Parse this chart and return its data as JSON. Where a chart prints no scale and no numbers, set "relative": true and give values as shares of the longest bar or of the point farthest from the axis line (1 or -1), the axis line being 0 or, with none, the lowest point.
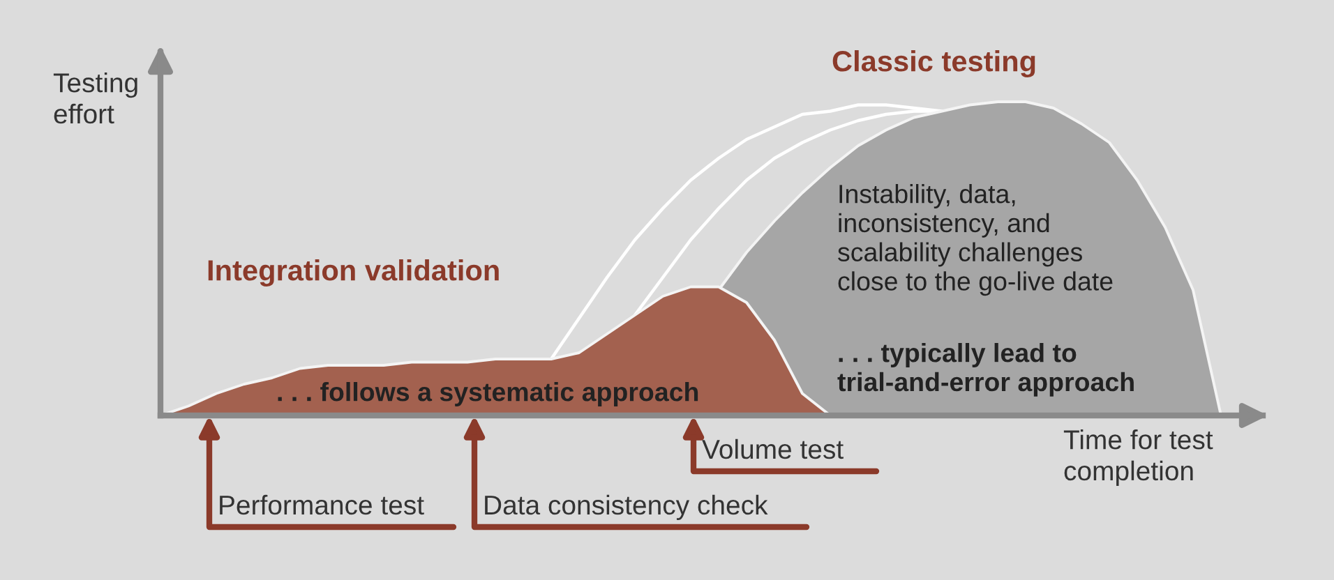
{
  "chart_data": {
    "type": "area",
    "relative": true,
    "xlabel": "Time for test\ncompletion",
    "ylabel": "Testing\neffort",
    "categories": [
      null,
      null,
      null,
      null,
      null,
      null,
      null,
      null,
      null,
      null,
      null,
      null,
      null,
      null,
      null,
      null,
      null,
      null,
      null,
      null,
      null,
      null,
      null,
      null,
      null,
      null,
      null,
      null,
      null,
      null,
      null,
      null,
      null,
      null,
      null,
      null,
      null,
      null,
      null,
      null
    ],
    "series": [
      {
        "type": "line",
        "color": "#ffffff",
        "values": [
          null,
          null,
          null,
          null,
          null,
          null,
          null,
          null,
          null,
          null,
          null,
          null,
          null,
          null,
          0.18,
          0.31,
          0.44,
          0.56,
          0.66,
          0.75,
          0.82,
          0.88,
          0.92,
          0.96,
          0.97,
          0.99,
          0.99,
          0.98,
          0.97,
          null,
          null,
          null,
          null,
          null,
          null,
          null,
          null,
          null,
          null,
          null
        ]
      },
      {
        "type": "line",
        "color": "#ffffff",
        "values": [
          null,
          null,
          null,
          null,
          null,
          null,
          null,
          null,
          null,
          null,
          null,
          null,
          null,
          null,
          null,
          null,
          null,
          0.32,
          0.44,
          0.56,
          0.66,
          0.75,
          0.82,
          0.87,
          0.91,
          0.94,
          0.96,
          0.97,
          0.97,
          null,
          null,
          null,
          null,
          null,
          null,
          null,
          null,
          null,
          null,
          null
        ]
      },
      {
        "color": "#a6a6a6",
        "values": [
          null,
          null,
          null,
          null,
          null,
          null,
          null,
          null,
          null,
          null,
          null,
          null,
          null,
          null,
          null,
          null,
          null,
          null,
          null,
          null,
          0.4,
          0.52,
          0.62,
          0.71,
          0.79,
          0.86,
          0.91,
          0.95,
          0.97,
          0.99,
          1.0,
          1.0,
          0.98,
          0.93,
          0.87,
          0.75,
          0.6,
          0.4,
          0.0,
          null
        ]
      },
      {
        "color": "#a3614f",
        "values": [
          0,
          0.03,
          0.07,
          0.1,
          0.12,
          0.15,
          0.16,
          0.16,
          0.16,
          0.17,
          0.17,
          0.17,
          0.18,
          0.18,
          0.18,
          0.2,
          0.26,
          0.32,
          0.38,
          0.41,
          0.41,
          0.36,
          0.24,
          0.07,
          0.0,
          null,
          null,
          null,
          null,
          null,
          null,
          null,
          null,
          null,
          null,
          null,
          null,
          null,
          null,
          null
        ]
      }
    ],
    "annotations": [
      "Classic testing",
      "Integration validation",
      ". . . follows a systematic approach",
      "Instability, data,\ninconsistency, and\nscalability challenges\nclose to the go-live date",
      ". . . typically lead to\ntrial-and-error approach",
      "Performance test",
      "Data consistency check",
      "Volume test"
    ],
    "grid": false,
    "legend": false
  }
}
